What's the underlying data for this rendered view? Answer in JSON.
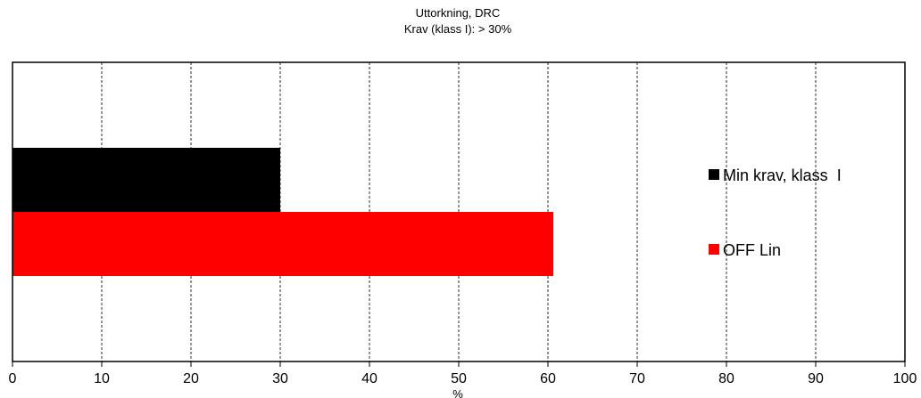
{
  "chart_data": {
    "type": "bar",
    "orientation": "horizontal",
    "title": "Uttorkning,  DRC",
    "subtitle": "Krav (klass  I): > 30%",
    "xlabel": "%",
    "ylabel": "",
    "xlim": [
      0,
      100
    ],
    "xticks": [
      0,
      10,
      20,
      30,
      40,
      50,
      60,
      70,
      80,
      90,
      100
    ],
    "grid": "vertical dashed",
    "legend_position": "right",
    "series": [
      {
        "name": "Min krav, klass  I",
        "value": 30,
        "color": "#000000"
      },
      {
        "name": "OFF Lin",
        "value": 60.6,
        "color": "#ff0000"
      }
    ]
  }
}
